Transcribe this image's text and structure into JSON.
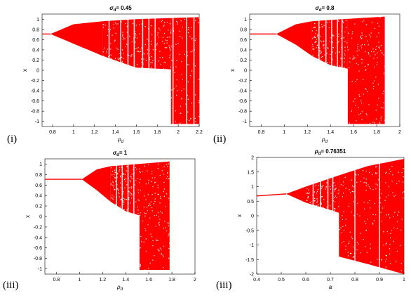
{
  "panels": [
    {
      "label": "(i)",
      "title_sym": "σ",
      "title_sub": "d",
      "title_val": "= 0.45"
    },
    {
      "label": "(ii)",
      "title_sym": "σ",
      "title_sub": "d",
      "title_val": "= 0.8"
    },
    {
      "label": "(iii)",
      "title_sym": "σ",
      "title_sub": "d",
      "title_val": "= 1"
    },
    {
      "label": "(iii)",
      "title_sym": "ρ",
      "title_sub": "d",
      "title_val": "= 0.76351"
    }
  ],
  "colors": {
    "points": "#ff0000",
    "axis": "#000000"
  },
  "chart_data": [
    {
      "type": "scatter",
      "title": "σd = 0.45",
      "xlabel": "ρd",
      "ylabel": "x",
      "xlim": [
        0.7,
        2.2
      ],
      "ylim": [
        -1.1,
        1.1
      ],
      "xticks": [
        0.8,
        1,
        1.2,
        1.4,
        1.6,
        1.8,
        2,
        2.2
      ],
      "xtick_labels": [
        "0.8",
        "1",
        "1.2",
        "1.4",
        "1.6",
        "1.8",
        "2",
        "2.2"
      ],
      "yticks": [
        -1,
        -0.8,
        -0.6,
        -0.4,
        -0.2,
        0,
        0.2,
        0.4,
        0.6,
        0.8,
        1
      ],
      "ytick_labels": [
        "-1",
        "-0.8",
        "-0.6",
        "-0.4",
        "-0.2",
        "0",
        "0.2",
        "0.4",
        "0.6",
        "0.8",
        "1"
      ],
      "fixed_point": {
        "x_start": 0.7,
        "x_end": 0.78,
        "value": 0.71
      },
      "period2_start": 0.78,
      "chaos_start": 1.28,
      "chaos_end": 2.2,
      "upper_envelope": [
        [
          0.78,
          0.71
        ],
        [
          1.0,
          0.9
        ],
        [
          1.28,
          0.96
        ],
        [
          1.6,
          1.0
        ],
        [
          2.2,
          1.04
        ]
      ],
      "lower_envelope": [
        [
          0.78,
          0.71
        ],
        [
          1.0,
          0.52
        ],
        [
          1.28,
          0.28
        ],
        [
          1.6,
          0.05
        ],
        [
          1.92,
          0.02
        ]
      ],
      "collapse_x": 1.93,
      "collapse_low": -1.05,
      "windows": [
        1.34,
        1.45,
        1.52,
        1.58,
        1.66,
        1.72,
        1.78,
        1.95,
        2.08,
        2.15
      ]
    },
    {
      "type": "scatter",
      "title": "σd = 0.8",
      "xlabel": "ρd",
      "ylabel": "x",
      "xlim": [
        0.7,
        2.0
      ],
      "ylim": [
        -1.1,
        1.1
      ],
      "xticks": [
        0.8,
        1,
        1.2,
        1.4,
        1.6,
        1.8,
        2
      ],
      "xtick_labels": [
        "0.8",
        "1",
        "1.2",
        "1.4",
        "1.6",
        "1.8",
        "2"
      ],
      "yticks": [
        -1,
        -0.8,
        -0.6,
        -0.4,
        -0.2,
        0,
        0.2,
        0.4,
        0.6,
        0.8,
        1
      ],
      "ytick_labels": [
        "-1",
        "-0.8",
        "-0.6",
        "-0.4",
        "-0.2",
        "0",
        "0.2",
        "0.4",
        "0.6",
        "0.8",
        "1"
      ],
      "fixed_point": {
        "x_start": 0.7,
        "x_end": 0.93,
        "value": 0.71
      },
      "period2_start": 0.93,
      "chaos_start": 1.24,
      "chaos_end": 1.87,
      "upper_envelope": [
        [
          0.93,
          0.71
        ],
        [
          1.1,
          0.9
        ],
        [
          1.24,
          0.96
        ],
        [
          1.5,
          1.0
        ],
        [
          1.87,
          1.05
        ]
      ],
      "lower_envelope": [
        [
          0.93,
          0.71
        ],
        [
          1.1,
          0.5
        ],
        [
          1.24,
          0.28
        ],
        [
          1.4,
          0.1
        ],
        [
          1.55,
          0.03
        ]
      ],
      "collapse_x": 1.55,
      "collapse_low": -1.05,
      "windows": [
        1.3,
        1.36,
        1.41,
        1.46,
        1.5
      ]
    },
    {
      "type": "scatter",
      "title": "σd = 1",
      "xlabel": "ρd",
      "ylabel": "x",
      "xlim": [
        0.7,
        2.0
      ],
      "ylim": [
        -1.1,
        1.1
      ],
      "xticks": [
        0.8,
        1,
        1.2,
        1.4,
        1.6,
        1.8,
        2
      ],
      "xtick_labels": [
        "0.8",
        "1",
        "1.2",
        "1.4",
        "1.6",
        "1.8",
        "2"
      ],
      "yticks": [
        -1,
        -0.8,
        -0.6,
        -0.4,
        -0.2,
        0,
        0.2,
        0.4,
        0.6,
        0.8,
        1
      ],
      "ytick_labels": [
        "-1",
        "-0.8",
        "-0.6",
        "-0.4",
        "-0.2",
        "0",
        "0.2",
        "0.4",
        "0.6",
        "0.8",
        "1"
      ],
      "fixed_point": {
        "x_start": 0.7,
        "x_end": 1.02,
        "value": 0.71
      },
      "period2_start": 1.02,
      "chaos_start": 1.27,
      "chaos_end": 1.78,
      "upper_envelope": [
        [
          1.02,
          0.71
        ],
        [
          1.15,
          0.9
        ],
        [
          1.27,
          0.96
        ],
        [
          1.5,
          1.0
        ],
        [
          1.78,
          1.05
        ]
      ],
      "lower_envelope": [
        [
          1.02,
          0.71
        ],
        [
          1.15,
          0.5
        ],
        [
          1.27,
          0.28
        ],
        [
          1.4,
          0.1
        ],
        [
          1.52,
          0.02
        ]
      ],
      "collapse_x": 1.52,
      "collapse_low": -1.02,
      "windows": [
        1.32,
        1.37,
        1.42,
        1.47
      ]
    },
    {
      "type": "scatter",
      "title": "ρd = 0.76351",
      "xlabel": "a",
      "ylabel": "x",
      "xlim": [
        0.4,
        1.0
      ],
      "ylim": [
        -2,
        2
      ],
      "xticks": [
        0.4,
        0.5,
        0.6,
        0.7,
        0.8,
        0.9,
        1
      ],
      "xtick_labels": [
        "0.4",
        "0.5",
        "0.6",
        "0.7",
        "0.8",
        "0.9",
        "1"
      ],
      "yticks": [
        -2,
        -1.5,
        -1,
        -0.5,
        0,
        0.5,
        1,
        1.5,
        2
      ],
      "ytick_labels": [
        "-2",
        "-1.5",
        "-1",
        "-0.5",
        "0",
        "0.5",
        "1",
        "1.5",
        "2"
      ],
      "fixed_point": {
        "x_start": 0.4,
        "x_end": 0.52,
        "value": 0.68
      },
      "fixed_point_end_value": 0.75,
      "period2_start": 0.52,
      "chaos_start": 0.6,
      "chaos_end": 1.0,
      "upper_envelope": [
        [
          0.52,
          0.75
        ],
        [
          0.6,
          1.0
        ],
        [
          0.74,
          1.4
        ],
        [
          0.85,
          1.7
        ],
        [
          1.0,
          1.95
        ]
      ],
      "lower_envelope": [
        [
          0.52,
          0.75
        ],
        [
          0.6,
          0.45
        ],
        [
          0.7,
          0.2
        ],
        [
          0.735,
          0.1
        ]
      ],
      "collapse_x": 0.735,
      "collapse_low_line": [
        [
          0.735,
          -1.4
        ],
        [
          0.85,
          -1.65
        ],
        [
          1.0,
          -2.0
        ]
      ],
      "windows": [
        0.63,
        0.66,
        0.69,
        0.71,
        0.8,
        0.9
      ]
    }
  ]
}
